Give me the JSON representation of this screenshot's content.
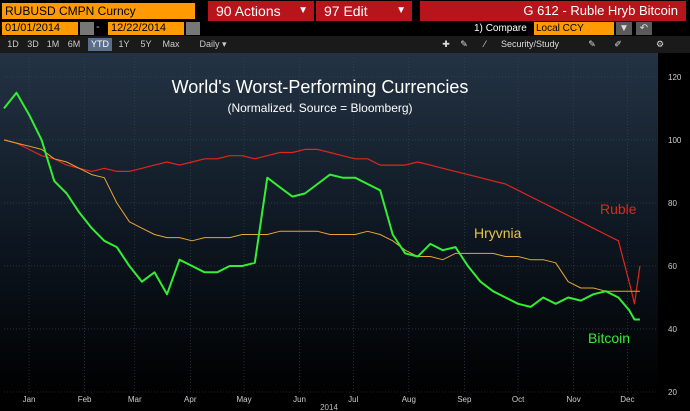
{
  "header": {
    "ticker": "RUBUSD CMPN Curncy",
    "actions_label": "90 Actions",
    "edit_label": "97 Edit",
    "title": "G 612 - Ruble Hryb Bitcoin",
    "start_date": "01/01/2014",
    "date_dash": "-",
    "end_date": "12/22/2014",
    "compare_label": "Compare",
    "compare_icon_text": "1)",
    "ccy_value": "Local CCY",
    "security_label": "Security/Study"
  },
  "periods": [
    "1D",
    "3D",
    "1M",
    "6M",
    "YTD",
    "1Y",
    "5Y",
    "Max"
  ],
  "active_period": "YTD",
  "frequency": "Daily",
  "icons": {
    "dropdown": "triangle-down-icon",
    "calendar": "calendar-icon",
    "settings": "gear-icon",
    "back": "back-arrow-icon",
    "edit": "pencil-icon",
    "add": "plus-icon"
  },
  "colors": {
    "ruble": "#e0261e",
    "hryvnia": "#e8a535",
    "bitcoin": "#33ee33",
    "accent_orange": "#ff9a00",
    "accent_red": "#b8141b"
  },
  "chart_data": {
    "type": "line",
    "title": "World's Worst-Performing Currencies",
    "subtitle": "(Normalized. Source = Bloomberg)",
    "x_ticks": [
      "Jan",
      "Feb",
      "Mar",
      "Apr",
      "May",
      "Jun",
      "Jul",
      "Aug",
      "Sep",
      "Oct",
      "Nov",
      "Dec"
    ],
    "x_year": "2014",
    "ylim": [
      20,
      126
    ],
    "y_ticks": [
      20,
      40,
      60,
      80,
      100,
      120
    ],
    "grid": true,
    "x": [
      "2014-01-01",
      "2014-01-08",
      "2014-01-15",
      "2014-01-22",
      "2014-01-29",
      "2014-02-05",
      "2014-02-12",
      "2014-02-19",
      "2014-02-26",
      "2014-03-05",
      "2014-03-12",
      "2014-03-19",
      "2014-03-26",
      "2014-04-02",
      "2014-04-09",
      "2014-04-16",
      "2014-04-23",
      "2014-04-30",
      "2014-05-07",
      "2014-05-14",
      "2014-05-21",
      "2014-05-28",
      "2014-06-04",
      "2014-06-11",
      "2014-06-18",
      "2014-06-25",
      "2014-07-02",
      "2014-07-09",
      "2014-07-16",
      "2014-07-23",
      "2014-07-30",
      "2014-08-06",
      "2014-08-13",
      "2014-08-20",
      "2014-08-27",
      "2014-09-03",
      "2014-09-10",
      "2014-09-17",
      "2014-09-24",
      "2014-10-01",
      "2014-10-08",
      "2014-10-15",
      "2014-10-22",
      "2014-10-29",
      "2014-11-05",
      "2014-11-12",
      "2014-11-19",
      "2014-11-26",
      "2014-12-03",
      "2014-12-10",
      "2014-12-16",
      "2014-12-19",
      "2014-12-22"
    ],
    "series": [
      {
        "name": "Ruble",
        "values": [
          100,
          99,
          97,
          95,
          94,
          92,
          91,
          90,
          91,
          90,
          90,
          91,
          92,
          93,
          92,
          93,
          94,
          94,
          95,
          95,
          94,
          95,
          96,
          96,
          97,
          97,
          96,
          95,
          94,
          94,
          92,
          92,
          92,
          93,
          92,
          91,
          90,
          89,
          88,
          87,
          86,
          84,
          82,
          80,
          78,
          76,
          74,
          72,
          70,
          68,
          55,
          48,
          60
        ]
      },
      {
        "name": "Hryvnia",
        "values": [
          100,
          99,
          98,
          97,
          94,
          93,
          91,
          89,
          88,
          80,
          74,
          72,
          70,
          69,
          69,
          68,
          69,
          69,
          69,
          70,
          70,
          70,
          71,
          71,
          71,
          71,
          70,
          70,
          70,
          71,
          70,
          68,
          65,
          63,
          63,
          62,
          64,
          64,
          64,
          64,
          63,
          63,
          62,
          62,
          61,
          55,
          53,
          53,
          52,
          52,
          52,
          52,
          52
        ]
      },
      {
        "name": "Bitcoin",
        "values": [
          110,
          115,
          108,
          100,
          87,
          83,
          77,
          72,
          68,
          66,
          60,
          55,
          58,
          51,
          62,
          60,
          58,
          58,
          60,
          60,
          61,
          88,
          85,
          82,
          83,
          86,
          89,
          88,
          88,
          86,
          84,
          70,
          64,
          63,
          67,
          65,
          66,
          60,
          55,
          52,
          50,
          48,
          47,
          50,
          48,
          50,
          49,
          51,
          52,
          50,
          46,
          43,
          43
        ]
      }
    ],
    "series_labels": [
      "Ruble",
      "Hryvnia",
      "Bitcoin"
    ]
  }
}
